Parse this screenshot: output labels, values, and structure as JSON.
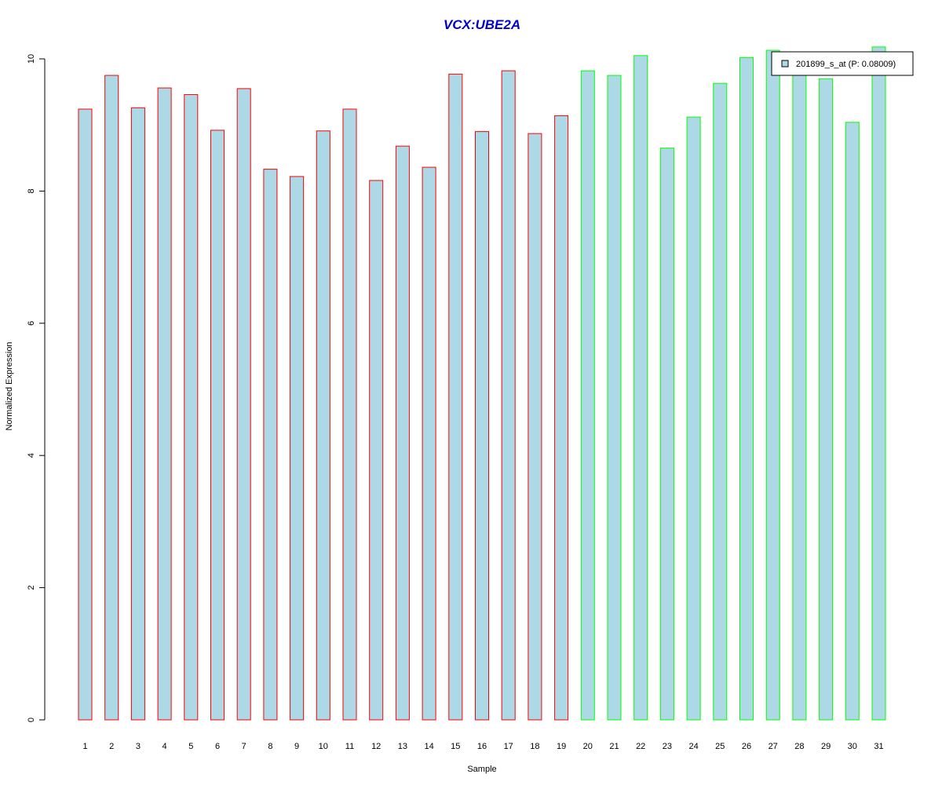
{
  "chart_data": {
    "type": "bar",
    "title": "VCX:UBE2A",
    "xlabel": "Sample",
    "ylabel": "Normalized Expression",
    "ylim": [
      0,
      10
    ],
    "y_ticks": [
      0,
      2,
      4,
      6,
      8,
      10
    ],
    "categories": [
      "1",
      "2",
      "3",
      "4",
      "5",
      "6",
      "7",
      "8",
      "9",
      "10",
      "11",
      "12",
      "13",
      "14",
      "15",
      "16",
      "17",
      "18",
      "19",
      "20",
      "21",
      "22",
      "23",
      "24",
      "25",
      "26",
      "27",
      "28",
      "29",
      "30",
      "31"
    ],
    "values": [
      9.24,
      9.75,
      9.26,
      9.56,
      9.46,
      8.92,
      9.55,
      8.33,
      8.22,
      8.91,
      9.24,
      8.16,
      8.68,
      8.36,
      9.77,
      8.9,
      9.82,
      8.87,
      9.14,
      9.82,
      9.75,
      10.05,
      8.65,
      9.12,
      9.63,
      10.02,
      10.13,
      9.82,
      9.7,
      9.04,
      10.18
    ],
    "groups": [
      "red",
      "red",
      "red",
      "red",
      "red",
      "red",
      "red",
      "red",
      "red",
      "red",
      "red",
      "red",
      "red",
      "red",
      "red",
      "red",
      "red",
      "red",
      "red",
      "green",
      "green",
      "green",
      "green",
      "green",
      "green",
      "green",
      "green",
      "green",
      "green",
      "green",
      "green"
    ],
    "legend": {
      "label": "201899_s_at (P: 0.08009)",
      "position": "top-right"
    },
    "colors": {
      "fill": "#add8e6",
      "border_red": "#ff0000",
      "border_green": "#00ff00",
      "title": "#0000cd",
      "axis": "#000000"
    },
    "grid": false
  }
}
